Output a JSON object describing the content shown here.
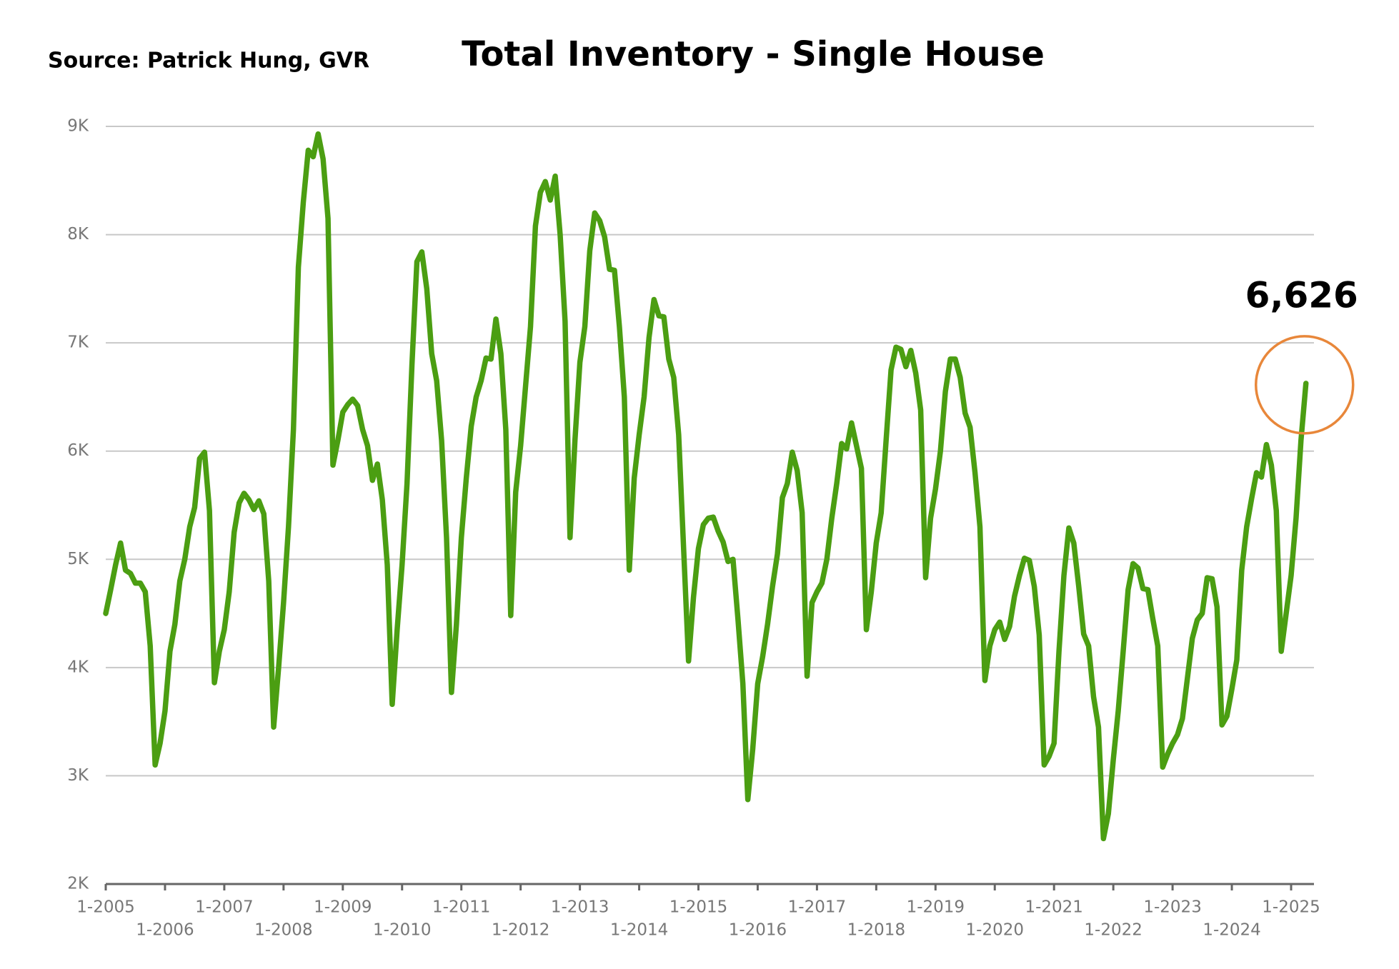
{
  "chart_data": {
    "type": "line",
    "title": "Total Inventory - Single House",
    "source": "Source:  Patrick Hung, GVR",
    "categories": [
      "1-2005",
      null,
      null,
      null,
      null,
      null,
      null,
      null,
      null,
      null,
      null,
      null,
      "1-2006",
      null,
      null,
      null,
      null,
      null,
      null,
      null,
      null,
      null,
      null,
      null,
      "1-2007",
      null,
      null,
      null,
      null,
      null,
      null,
      null,
      null,
      null,
      null,
      null,
      "1-2008",
      null,
      null,
      null,
      null,
      null,
      null,
      null,
      null,
      null,
      null,
      null,
      "1-2009",
      null,
      null,
      null,
      null,
      null,
      null,
      null,
      null,
      null,
      null,
      null,
      "1-2010",
      null,
      null,
      null,
      null,
      null,
      null,
      null,
      null,
      null,
      null,
      null,
      "1-2011",
      null,
      null,
      null,
      null,
      null,
      null,
      null,
      null,
      null,
      null,
      null,
      "1-2012",
      null,
      null,
      null,
      null,
      null,
      null,
      null,
      null,
      null,
      null,
      null,
      "1-2013",
      null,
      null,
      null,
      null,
      null,
      null,
      null,
      null,
      null,
      null,
      null,
      "1-2014",
      null,
      null,
      null,
      null,
      null,
      null,
      null,
      null,
      null,
      null,
      null,
      "1-2015",
      null,
      null,
      null,
      null,
      null,
      null,
      null,
      null,
      null,
      null,
      null,
      "1-2016",
      null,
      null,
      null,
      null,
      null,
      null,
      null,
      null,
      null,
      null,
      null,
      "1-2017",
      null,
      null,
      null,
      null,
      null,
      null,
      null,
      null,
      null,
      null,
      null,
      "1-2018",
      null,
      null,
      null,
      null,
      null,
      null,
      null,
      null,
      null,
      null,
      null,
      "1-2019",
      null,
      null,
      null,
      null,
      null,
      null,
      null,
      null,
      null,
      null,
      null,
      "1-2020",
      null,
      null,
      null,
      null,
      null,
      null,
      null,
      null,
      null,
      null,
      null,
      "1-2021",
      null,
      null,
      null,
      null,
      null,
      null,
      null,
      null,
      null,
      null,
      null,
      "1-2022",
      null,
      null,
      null,
      null,
      null,
      null,
      null,
      null,
      null,
      null,
      null,
      "1-2023",
      null,
      null,
      null,
      null,
      null,
      null,
      null,
      null,
      null,
      null,
      null,
      "1-2024",
      null,
      null,
      null,
      null,
      null,
      null,
      null,
      null,
      null,
      null,
      null,
      "1-2025",
      null,
      null,
      null
    ],
    "series": [
      {
        "name": "Total Inventory",
        "color": "#4b9e12",
        "values": [
          4500,
          4720,
          4950,
          5150,
          4900,
          4870,
          4780,
          4780,
          4700,
          4200,
          3100,
          3300,
          3600,
          4150,
          4400,
          4800,
          5000,
          5300,
          5480,
          5930,
          5990,
          5450,
          3860,
          4150,
          4350,
          4700,
          5250,
          5520,
          5610,
          5550,
          5460,
          5540,
          5420,
          4800,
          3450,
          4000,
          4600,
          5300,
          6200,
          7700,
          8300,
          8780,
          8720,
          8930,
          8700,
          8150,
          5870,
          6100,
          6360,
          6430,
          6480,
          6420,
          6200,
          6050,
          5730,
          5880,
          5550,
          4950,
          3660,
          4350,
          4950,
          5700,
          6800,
          7750,
          7840,
          7500,
          6900,
          6650,
          6100,
          5200,
          3770,
          4400,
          5200,
          5750,
          6230,
          6500,
          6650,
          6860,
          6850,
          7220,
          6900,
          6200,
          4480,
          5620,
          6050,
          6600,
          7150,
          8080,
          8390,
          8490,
          8320,
          8540,
          8000,
          7200,
          5200,
          6100,
          6820,
          7150,
          7850,
          8200,
          8130,
          7980,
          7680,
          7670,
          7150,
          6500,
          4900,
          5750,
          6150,
          6500,
          7050,
          7400,
          7250,
          7240,
          6850,
          6680,
          6150,
          5100,
          4060,
          4650,
          5100,
          5320,
          5380,
          5390,
          5260,
          5160,
          4980,
          5000,
          4450,
          3850,
          2780,
          3250,
          3850,
          4100,
          4400,
          4750,
          5050,
          5570,
          5700,
          5990,
          5820,
          5430,
          3920,
          4600,
          4700,
          4780,
          5000,
          5380,
          5700,
          6070,
          6020,
          6260,
          6050,
          5840,
          4350,
          4700,
          5150,
          5430,
          6100,
          6750,
          6960,
          6940,
          6780,
          6930,
          6720,
          6380,
          4830,
          5380,
          5650,
          6000,
          6550,
          6850,
          6850,
          6680,
          6350,
          6220,
          5800,
          5300,
          3880,
          4200,
          4350,
          4420,
          4260,
          4380,
          4660,
          4850,
          5010,
          4990,
          4750,
          4300,
          3100,
          3180,
          3300,
          4150,
          4850,
          5290,
          5150,
          4750,
          4310,
          4200,
          3730,
          3450,
          2420,
          2650,
          3150,
          3600,
          4150,
          4720,
          4960,
          4920,
          4730,
          4720,
          4450,
          4200,
          3080,
          3200,
          3300,
          3380,
          3530,
          3900,
          4270,
          4440,
          4500,
          4830,
          4820,
          4560,
          3470,
          3550,
          3800,
          4070,
          4900,
          5300,
          5560,
          5800,
          5760,
          6060,
          5870,
          5450,
          4150,
          4500,
          4850,
          5380,
          6100,
          6626
        ],
        "value_labels": [
          null,
          null,
          null,
          null,
          null,
          null,
          null,
          null,
          null,
          null,
          null,
          null,
          null,
          null,
          null,
          null,
          null,
          null,
          null,
          null,
          null,
          null,
          null,
          null,
          null,
          null,
          null,
          null,
          null,
          null,
          null,
          null,
          null,
          null,
          null,
          null,
          null,
          null,
          null,
          null,
          null,
          null,
          null,
          null,
          null,
          null,
          null,
          null,
          null,
          null,
          null,
          null,
          null,
          null,
          null,
          null,
          null,
          null,
          null,
          null,
          null,
          null,
          null,
          null,
          null,
          null,
          null,
          null,
          null,
          null,
          null,
          null,
          null,
          null,
          null,
          null,
          null,
          null,
          null,
          null,
          null,
          null,
          null,
          null,
          null,
          null,
          null,
          null,
          null,
          null,
          null,
          null,
          null,
          null,
          null,
          null,
          null,
          null,
          null,
          null,
          null,
          null,
          null,
          null,
          null,
          null,
          null,
          null,
          null,
          null,
          null,
          null,
          null,
          null,
          null,
          null,
          null,
          null,
          null,
          null,
          null,
          null,
          null,
          null,
          null,
          null,
          null,
          null,
          null,
          null,
          null,
          null,
          null,
          null,
          null,
          null,
          null,
          null,
          null,
          null,
          null,
          null,
          null,
          null,
          null,
          null,
          null,
          null,
          null,
          null,
          null,
          null,
          null,
          null,
          null,
          null,
          null,
          null,
          null,
          null,
          null,
          null,
          null,
          null,
          null,
          null,
          null,
          null,
          null,
          null,
          null,
          null,
          null,
          null,
          null,
          null,
          null,
          null,
          null,
          null,
          null,
          null,
          null,
          null,
          null,
          null,
          null,
          null,
          null,
          null,
          null,
          null,
          null,
          null,
          null,
          null,
          null,
          null,
          null,
          null,
          null,
          null,
          null,
          null,
          null,
          null,
          null,
          null,
          null,
          null,
          null,
          null,
          null,
          null,
          null,
          null,
          null,
          null,
          null,
          null,
          null,
          null,
          null,
          null,
          null,
          null,
          null,
          null,
          null,
          null,
          null,
          null,
          null,
          null,
          null,
          null,
          null,
          null,
          null,
          null,
          null,
          null,
          null,
          "6,626"
        ]
      }
    ],
    "ylim": [
      2000,
      9000
    ],
    "yticks": [
      {
        "value": 2000,
        "label": "2K"
      },
      {
        "value": 3000,
        "label": "3K"
      },
      {
        "value": 4000,
        "label": "4K"
      },
      {
        "value": 5000,
        "label": "5K"
      },
      {
        "value": 6000,
        "label": "6K"
      },
      {
        "value": 7000,
        "label": "7K"
      },
      {
        "value": 8000,
        "label": "8K"
      },
      {
        "value": 9000,
        "label": "9K"
      }
    ],
    "grid": true
  }
}
